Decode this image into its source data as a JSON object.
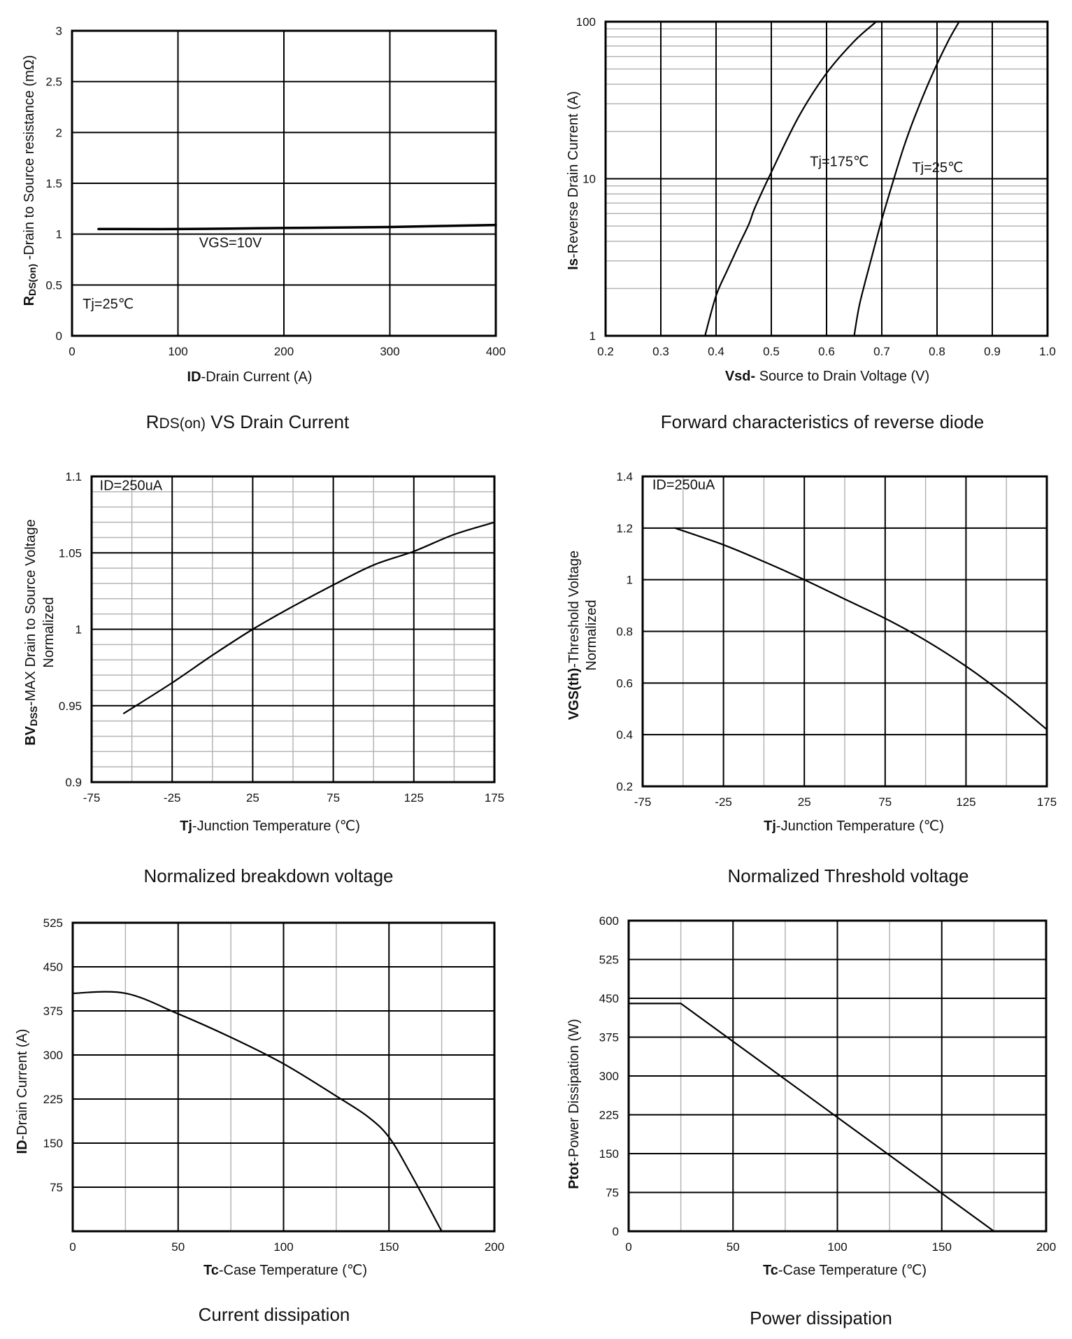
{
  "chart_data": [
    {
      "id": "rds",
      "type": "line",
      "title": "RDS(on) VS Drain Current",
      "xlabel": "ID-Drain Current (A)",
      "ylabel": "RDS(on)-Drain to Source resistance (mΩ)",
      "xlim": [
        0,
        400
      ],
      "ylim": [
        0,
        3
      ],
      "xscale": "linear",
      "yscale": "linear",
      "xticks": [
        0,
        100,
        200,
        300,
        400
      ],
      "yticks": [
        0,
        0.5,
        1,
        1.5,
        2,
        2.5,
        3
      ],
      "xtick_labels": [
        "0",
        "100",
        "200",
        "300",
        "400"
      ],
      "ytick_labels": [
        "0",
        "0.5",
        "1",
        "1.5",
        "2",
        "2.5",
        "3"
      ],
      "minor_x": [],
      "minor_y": [],
      "annotations": [
        {
          "text": "VGS=10V",
          "x": 120,
          "y": 0.87
        },
        {
          "text": "Tj=25℃",
          "x": 10,
          "y": 0.27
        }
      ],
      "series": [
        {
          "name": "VGS=10V",
          "x": [
            25,
            50,
            100,
            150,
            200,
            250,
            300,
            350,
            400
          ],
          "y": [
            1.05,
            1.05,
            1.05,
            1.055,
            1.06,
            1.065,
            1.07,
            1.08,
            1.09
          ]
        }
      ]
    },
    {
      "id": "diode",
      "type": "line",
      "title": "Forward characteristics of reverse diode",
      "xlabel": "Vsd- Source to Drain Voltage (V)",
      "ylabel": "Is-Reverse Drain Current (A)",
      "xlim": [
        0.2,
        1.0
      ],
      "ylim": [
        1,
        100
      ],
      "xscale": "linear",
      "yscale": "log",
      "xticks": [
        0.2,
        0.3,
        0.4,
        0.5,
        0.6,
        0.7,
        0.8,
        0.9,
        1.0
      ],
      "yticks": [
        1,
        10,
        100
      ],
      "xtick_labels": [
        "0.2",
        "0.3",
        "0.4",
        "0.5",
        "0.6",
        "0.7",
        "0.8",
        "0.9",
        "1.0"
      ],
      "ytick_labels": [
        "1",
        "10",
        "100"
      ],
      "minor_x": [],
      "minor_y": [
        2,
        3,
        4,
        5,
        6,
        7,
        8,
        9,
        20,
        30,
        40,
        50,
        60,
        70,
        80,
        90
      ],
      "annotations": [
        {
          "text": "Tj=175℃",
          "x": 0.57,
          "y": 12
        },
        {
          "text": "Tj=25℃",
          "x": 0.755,
          "y": 11
        }
      ],
      "series": [
        {
          "name": "Tj=175℃",
          "x": [
            0.38,
            0.4,
            0.42,
            0.44,
            0.46,
            0.47,
            0.5,
            0.55,
            0.6,
            0.65,
            0.69
          ],
          "y": [
            1,
            1.8,
            2.6,
            3.7,
            5.2,
            6.5,
            11,
            25,
            47,
            75,
            100
          ]
        },
        {
          "name": "Tj=25℃",
          "x": [
            0.65,
            0.66,
            0.68,
            0.7,
            0.72,
            0.74,
            0.76,
            0.79,
            0.82,
            0.84
          ],
          "y": [
            1,
            1.6,
            3,
            5.5,
            9.5,
            16,
            25,
            45,
            75,
            100
          ]
        }
      ]
    },
    {
      "id": "bvdss",
      "type": "line",
      "title": "Normalized breakdown voltage",
      "xlabel": "Tj-Junction Temperature (℃)",
      "ylabel": "BVDSS-MAX Drain to Source Voltage Normalized",
      "xlim": [
        -75,
        175
      ],
      "ylim": [
        0.9,
        1.1
      ],
      "xscale": "linear",
      "yscale": "linear",
      "xticks": [
        -75,
        -25,
        25,
        75,
        125,
        175
      ],
      "yticks": [
        0.9,
        0.95,
        1,
        1.05,
        1.1
      ],
      "xtick_labels": [
        "-75",
        "-25",
        "25",
        "75",
        "125",
        "175"
      ],
      "ytick_labels": [
        "0.9",
        "0.95",
        "1",
        "1.05",
        "1.1"
      ],
      "minor_x": [
        -50,
        0,
        50,
        100,
        150
      ],
      "minor_y": [
        0.91,
        0.92,
        0.93,
        0.94,
        0.96,
        0.97,
        0.98,
        0.99,
        1.01,
        1.02,
        1.03,
        1.04,
        1.06,
        1.07,
        1.08,
        1.09
      ],
      "annotations": [
        {
          "text": "ID=250uA",
          "x": -70,
          "y": 1.091
        }
      ],
      "series": [
        {
          "name": "ID=250uA",
          "x": [
            -55,
            -25,
            0,
            25,
            50,
            75,
            100,
            125,
            150,
            175
          ],
          "y": [
            0.945,
            0.965,
            0.983,
            1.0,
            1.015,
            1.029,
            1.042,
            1.051,
            1.062,
            1.07
          ]
        }
      ]
    },
    {
      "id": "vth",
      "type": "line",
      "title": "Normalized Threshold voltage",
      "xlabel": "Tj-Junction Temperature (℃)",
      "ylabel": "VGS(th)-Threshold Voltage Normalized",
      "xlim": [
        -75,
        175
      ],
      "ylim": [
        0.2,
        1.4
      ],
      "xscale": "linear",
      "yscale": "linear",
      "xticks": [
        -75,
        -25,
        25,
        75,
        125,
        175
      ],
      "yticks": [
        0.2,
        0.4,
        0.6,
        0.8,
        1,
        1.2,
        1.4
      ],
      "xtick_labels": [
        "-75",
        "-25",
        "25",
        "75",
        "125",
        "175"
      ],
      "ytick_labels": [
        "0.2",
        "0.4",
        "0.6",
        "0.8",
        "1",
        "1.2",
        "1.4"
      ],
      "minor_x": [
        -50,
        0,
        50,
        100,
        150
      ],
      "minor_y": [],
      "annotations": [
        {
          "text": "ID=250uA",
          "x": -69,
          "y": 1.35
        }
      ],
      "series": [
        {
          "name": "ID=250uA",
          "x": [
            -55,
            -25,
            0,
            25,
            50,
            75,
            100,
            125,
            150,
            175
          ],
          "y": [
            1.2,
            1.135,
            1.07,
            1.0,
            0.925,
            0.85,
            0.765,
            0.665,
            0.55,
            0.42
          ]
        }
      ]
    },
    {
      "id": "current",
      "type": "line",
      "title": "Current dissipation",
      "xlabel": "Tc-Case Temperature (℃)",
      "ylabel": "ID-Drain Current (A)",
      "xlim": [
        0,
        200
      ],
      "ylim": [
        0,
        525
      ],
      "xscale": "linear",
      "yscale": "linear",
      "xticks": [
        0,
        50,
        100,
        150,
        200
      ],
      "yticks": [
        75,
        150,
        225,
        300,
        375,
        450,
        525
      ],
      "xtick_labels": [
        "0",
        "50",
        "100",
        "150",
        "200"
      ],
      "ytick_labels": [
        "75",
        "150",
        "225",
        "300",
        "375",
        "450",
        "525"
      ],
      "minor_x": [
        25,
        75,
        125,
        175
      ],
      "minor_y": [],
      "annotations": [],
      "series": [
        {
          "name": "ID",
          "x": [
            0,
            25,
            50,
            75,
            100,
            125,
            140,
            150,
            160,
            175
          ],
          "y": [
            405,
            405,
            370,
            330,
            285,
            230,
            195,
            160,
            100,
            0
          ]
        }
      ]
    },
    {
      "id": "power",
      "type": "line",
      "title": "Power dissipation",
      "xlabel": "Tc-Case Temperature (℃)",
      "ylabel": "Ptot-Power Dissipation (W)",
      "xlim": [
        0,
        200
      ],
      "ylim": [
        0,
        600
      ],
      "xscale": "linear",
      "yscale": "linear",
      "xticks": [
        0,
        50,
        100,
        150,
        200
      ],
      "yticks": [
        0,
        75,
        150,
        225,
        300,
        375,
        450,
        525,
        600
      ],
      "xtick_labels": [
        "0",
        "50",
        "100",
        "150",
        "200"
      ],
      "ytick_labels": [
        "0",
        "75",
        "150",
        "225",
        "300",
        "375",
        "450",
        "525",
        "600"
      ],
      "minor_x": [
        25,
        75,
        125,
        175
      ],
      "minor_y": [],
      "annotations": [],
      "series": [
        {
          "name": "Ptot",
          "x": [
            0,
            25,
            175
          ],
          "y": [
            440,
            440,
            0
          ]
        }
      ]
    }
  ],
  "colors": {
    "major_grid": "#000000",
    "minor_grid": "#b5b5b5",
    "curve": "#000000"
  }
}
